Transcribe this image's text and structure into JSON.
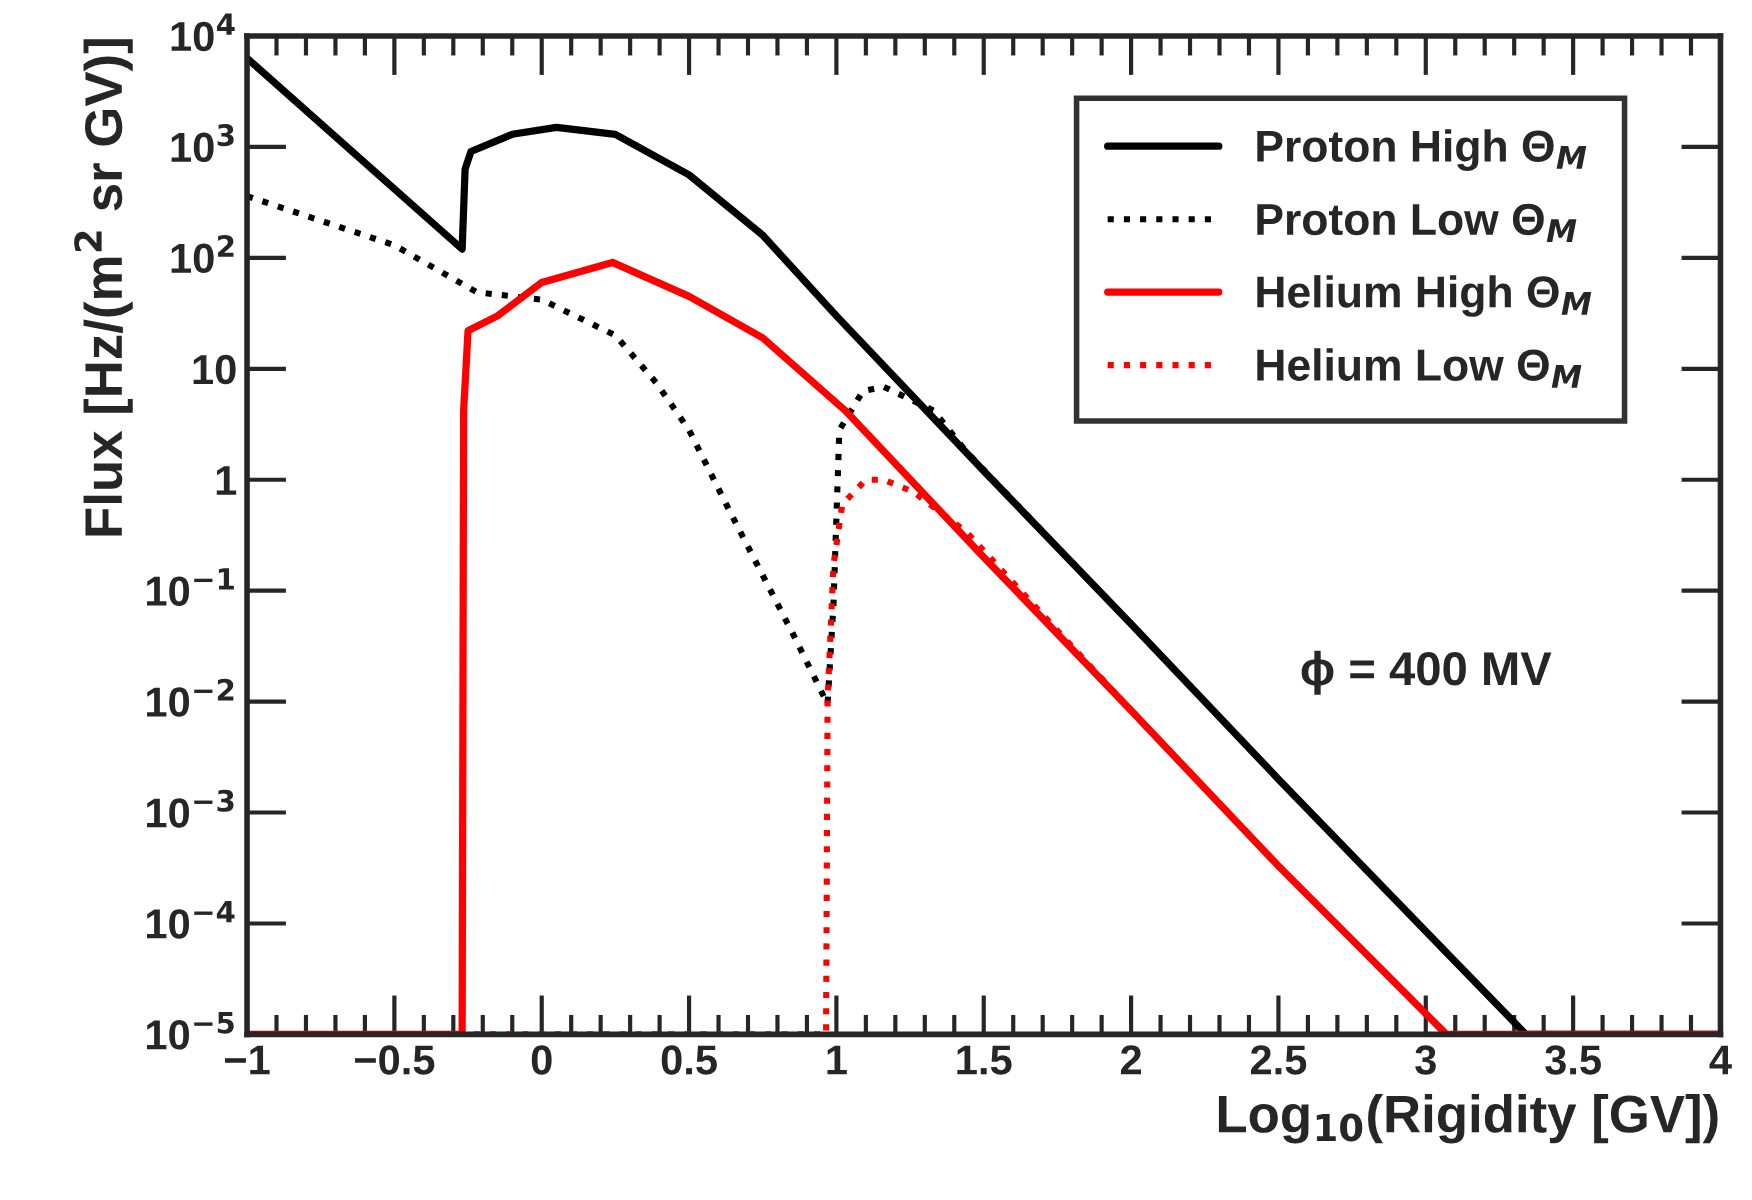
{
  "chart_data": {
    "type": "line",
    "xlabel": "Log$_{10}$(Rigidity [GV])",
    "ylabel": "Flux [Hz/(m$^{2}$ sr GV)]",
    "log": "y",
    "grid": false,
    "legend": "top right",
    "xlim": [
      -1,
      4
    ],
    "ylim": [
      1e-05,
      10000
    ],
    "xticks": [
      {
        "value": -1,
        "label": "−1"
      },
      {
        "value": -0.5,
        "label": "−0.5"
      },
      0,
      0.5,
      1,
      1.5,
      2,
      2.5,
      3,
      3.5,
      4
    ],
    "yticks": [
      {
        "value": 1e-05,
        "label": "10$^{−5}$"
      },
      {
        "value": 0.0001,
        "label": "10$^{−4}$"
      },
      {
        "value": 0.001,
        "label": "10$^{−3}$"
      },
      {
        "value": 0.01,
        "label": "10$^{−2}$"
      },
      {
        "value": 0.1,
        "label": "10$^{−1}$"
      },
      1,
      10,
      {
        "value": 100,
        "label": "10$^{2}$"
      },
      {
        "value": 1000,
        "label": "10$^{3}$"
      },
      {
        "value": 10000,
        "label": "10$^{4}$"
      }
    ],
    "annotations": [
      "ϕ = 400 MV"
    ],
    "series": [
      {
        "name": "Proton High Θ$_{M}$",
        "color": "#000000",
        "line_style": "solid",
        "x": [
          -1,
          -0.27,
          -0.26,
          -0.24,
          -0.1,
          0.05,
          0.25,
          0.5,
          0.75,
          1,
          1.5,
          2,
          2.5,
          3,
          3.34,
          4
        ],
        "values": [
          6300,
          120,
          630,
          910,
          1300,
          1500,
          1300,
          560,
          160,
          30,
          1.2,
          0.05,
          0.002,
          8.5e-05,
          1e-05,
          1e-05
        ]
      },
      {
        "name": "Proton Low Θ$_{M}$",
        "color": "#000000",
        "line_style": "dotted",
        "x": [
          -1,
          -0.5,
          -0.22,
          0,
          0.25,
          0.39,
          0.5,
          0.65,
          0.85,
          0.97,
          0.99,
          1.01,
          1.09,
          1.16,
          1.33,
          1.44,
          2,
          2.5,
          3,
          3.34,
          4
        ],
        "values": [
          360,
          130,
          49,
          42,
          20,
          7.4,
          2.8,
          0.45,
          0.042,
          0.0095,
          0.074,
          2.8,
          6.3,
          6.9,
          4.2,
          1.8,
          0.05,
          0.002,
          8.5e-05,
          1e-05,
          1e-05
        ]
      },
      {
        "name": "Helium High Θ$_{M}$",
        "color": "#ff0000",
        "line_style": "solid",
        "x": [
          -1,
          -0.27,
          -0.265,
          -0.25,
          -0.15,
          0,
          0.24,
          0.5,
          0.75,
          1.03,
          1.5,
          2,
          2.5,
          3.07,
          4
        ],
        "values": [
          1e-05,
          1e-05,
          4.2,
          22,
          30,
          60,
          91,
          45,
          19,
          4.2,
          0.2,
          0.0083,
          0.00033,
          1e-05,
          1e-05
        ]
      },
      {
        "name": "Helium Low Θ$_{M}$",
        "color": "#ff0000",
        "line_style": "dotted",
        "x": [
          -1,
          0.965,
          0.97,
          0.99,
          1.02,
          1.1,
          1.16,
          1.26,
          1.44,
          2,
          2.5,
          3.07,
          4
        ],
        "values": [
          1e-05,
          1e-05,
          0.01,
          0.17,
          0.6,
          1,
          1,
          0.78,
          0.34,
          0.0083,
          0.00033,
          1e-05,
          1e-05
        ]
      }
    ]
  }
}
